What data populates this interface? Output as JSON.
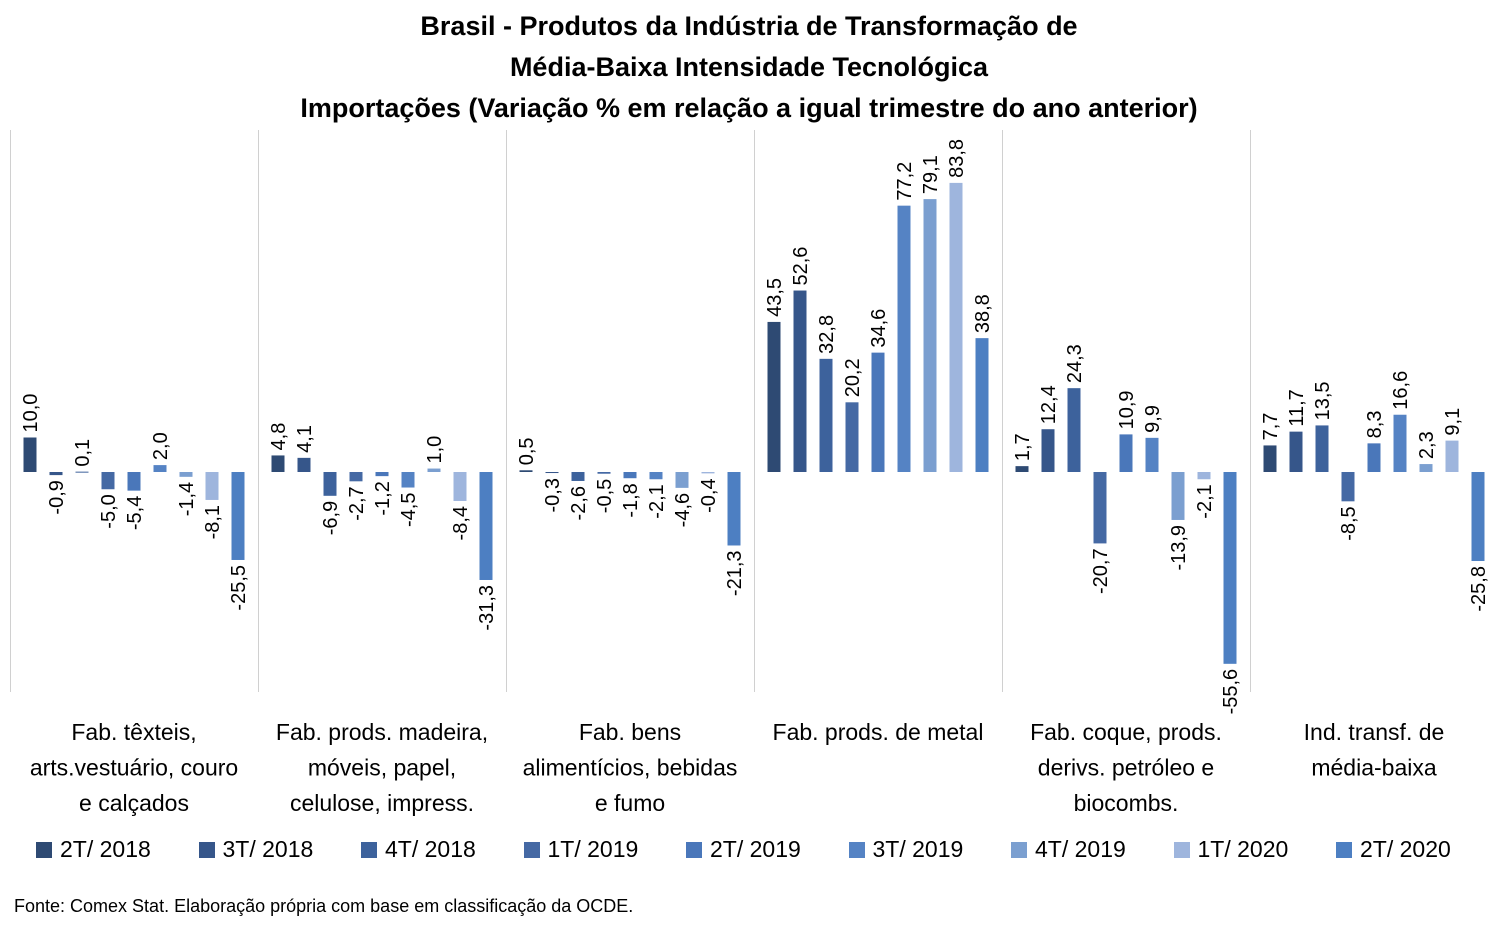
{
  "title": {
    "line1": "Brasil - Produtos da Indústria de Transformação de",
    "line2": "Média-Baixa Intensidade Tecnológica",
    "line3": "Importações (Variação % em relação a igual trimestre do ano anterior)"
  },
  "source": "Fonte: Comex Stat. Elaboração própria com base em classificação da OCDE.",
  "chart_data": {
    "type": "bar",
    "title": "Brasil - Produtos da Indústria de Transformação de Média-Baixa Intensidade Tecnológica Importações (Variação % em relação a igual trimestre do ano anterior)",
    "categories": [
      [
        "Fab. têxteis,",
        "arts.vestuário, couro",
        "e calçados"
      ],
      [
        "Fab. prods. madeira,",
        "móveis, papel,",
        "celulose, impress."
      ],
      [
        "Fab. bens",
        "alimentícios, bebidas",
        "e fumo"
      ],
      [
        "Fab. prods. de metal"
      ],
      [
        "Fab. coque, prods.",
        "derivs. petróleo e",
        "biocombs."
      ],
      [
        "Ind. transf. de",
        "média-baixa"
      ]
    ],
    "series": [
      {
        "name": "2T/ 2018",
        "color": "#2E4A73",
        "values": [
          10.0,
          4.8,
          0.5,
          43.5,
          1.7,
          7.7
        ]
      },
      {
        "name": "3T/ 2018",
        "color": "#36568A",
        "values": [
          -0.9,
          4.1,
          -0.3,
          52.6,
          12.4,
          11.7
        ]
      },
      {
        "name": "4T/ 2018",
        "color": "#3D629C",
        "values": [
          0.1,
          -6.9,
          -2.6,
          32.8,
          24.3,
          13.5
        ]
      },
      {
        "name": "1T/ 2019",
        "color": "#4569A4",
        "values": [
          -5.0,
          -2.7,
          -0.5,
          20.2,
          -20.7,
          -8.5
        ]
      },
      {
        "name": "2T/ 2019",
        "color": "#4A77BA",
        "values": [
          -5.4,
          -1.2,
          -1.8,
          34.6,
          10.9,
          8.3
        ]
      },
      {
        "name": "3T/ 2019",
        "color": "#5583C4",
        "values": [
          2.0,
          -4.5,
          -2.1,
          77.2,
          9.9,
          16.6
        ]
      },
      {
        "name": "4T/ 2019",
        "color": "#7B9FD0",
        "values": [
          -1.4,
          1.0,
          -4.6,
          79.1,
          -13.9,
          2.3
        ]
      },
      {
        "name": "1T/ 2020",
        "color": "#9EB5DD",
        "values": [
          -8.1,
          -8.4,
          -0.4,
          83.8,
          -2.1,
          9.1
        ]
      },
      {
        "name": "2T/ 2020",
        "color": "#4D7FC2",
        "values": [
          -25.5,
          -31.3,
          -21.3,
          38.8,
          -55.6,
          -25.8
        ]
      }
    ],
    "ylim": [
      -63,
      100
    ],
    "value_format": "comma-decimal-1",
    "grid": false,
    "legend": "bottom"
  }
}
